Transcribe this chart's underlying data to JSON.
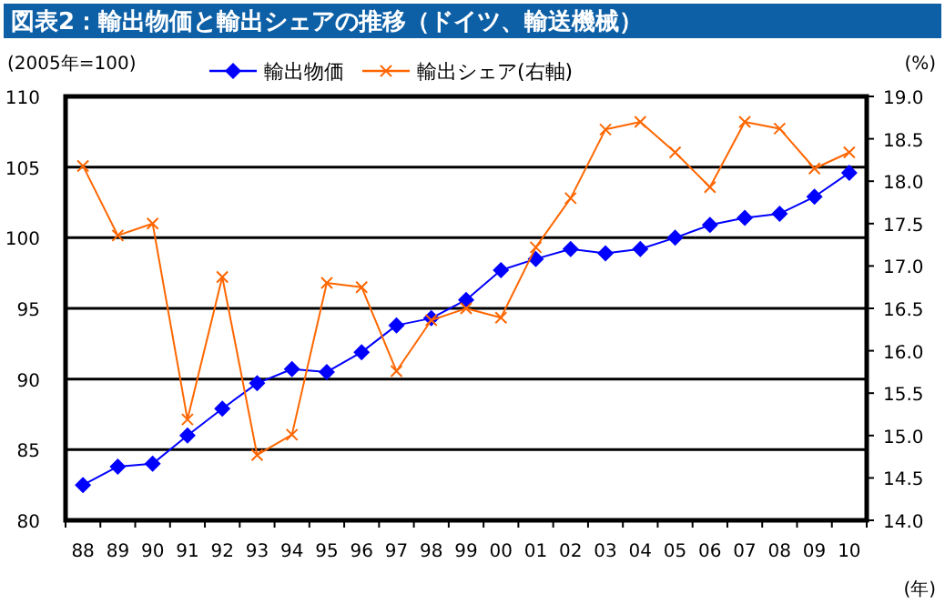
{
  "chart_data": {
    "type": "line",
    "title": "図表2：輸出物価と輸出シェアの推移（ドイツ、輸送機械）",
    "ylabel": "(2005年=100)",
    "y2label": "(%)",
    "xlabel": "(年)",
    "categories": [
      "88",
      "89",
      "90",
      "91",
      "92",
      "93",
      "94",
      "95",
      "96",
      "97",
      "98",
      "99",
      "00",
      "01",
      "02",
      "03",
      "04",
      "05",
      "06",
      "07",
      "08",
      "09",
      "10"
    ],
    "series": [
      {
        "name": "輸出物価",
        "color": "#0000ff",
        "marker": "diamond",
        "values": [
          82.5,
          83.8,
          84.0,
          86.0,
          87.9,
          89.7,
          90.7,
          90.5,
          91.9,
          93.8,
          94.3,
          95.6,
          97.7,
          98.5,
          99.2,
          98.9,
          99.2,
          100.0,
          100.9,
          101.4,
          101.7,
          102.9,
          104.6
        ]
      },
      {
        "name": "輸出シェア(右軸)",
        "color": "#ff6600",
        "marker": "cross",
        "axis": "y2",
        "values": [
          18.18,
          17.36,
          17.5,
          15.19,
          16.87,
          14.77,
          15.01,
          16.8,
          16.75,
          15.76,
          16.36,
          16.5,
          16.39,
          17.22,
          17.8,
          18.61,
          18.7,
          18.34,
          17.93,
          18.7,
          18.62,
          18.15,
          18.34
        ]
      }
    ],
    "ylim": [
      80,
      110
    ],
    "yticks": [
      80,
      85,
      90,
      95,
      100,
      105,
      110
    ],
    "y2lim": [
      14,
      19
    ],
    "y2ticks": [
      {
        "value": 14,
        "label": "14.0"
      },
      {
        "value": 14.5,
        "label": "14.5"
      },
      {
        "value": 15,
        "label": "15.0"
      },
      {
        "value": 15.5,
        "label": "15.5"
      },
      {
        "value": 16,
        "label": "16.0"
      },
      {
        "value": 16.5,
        "label": "16.5"
      },
      {
        "value": 17,
        "label": "17.0"
      },
      {
        "value": 17.5,
        "label": "17.5"
      },
      {
        "value": 18,
        "label": "18.0"
      },
      {
        "value": 18.5,
        "label": "18.5"
      },
      {
        "value": 19,
        "label": "19.0"
      }
    ],
    "grid": "y",
    "legend": "top",
    "line_style": "solid"
  }
}
